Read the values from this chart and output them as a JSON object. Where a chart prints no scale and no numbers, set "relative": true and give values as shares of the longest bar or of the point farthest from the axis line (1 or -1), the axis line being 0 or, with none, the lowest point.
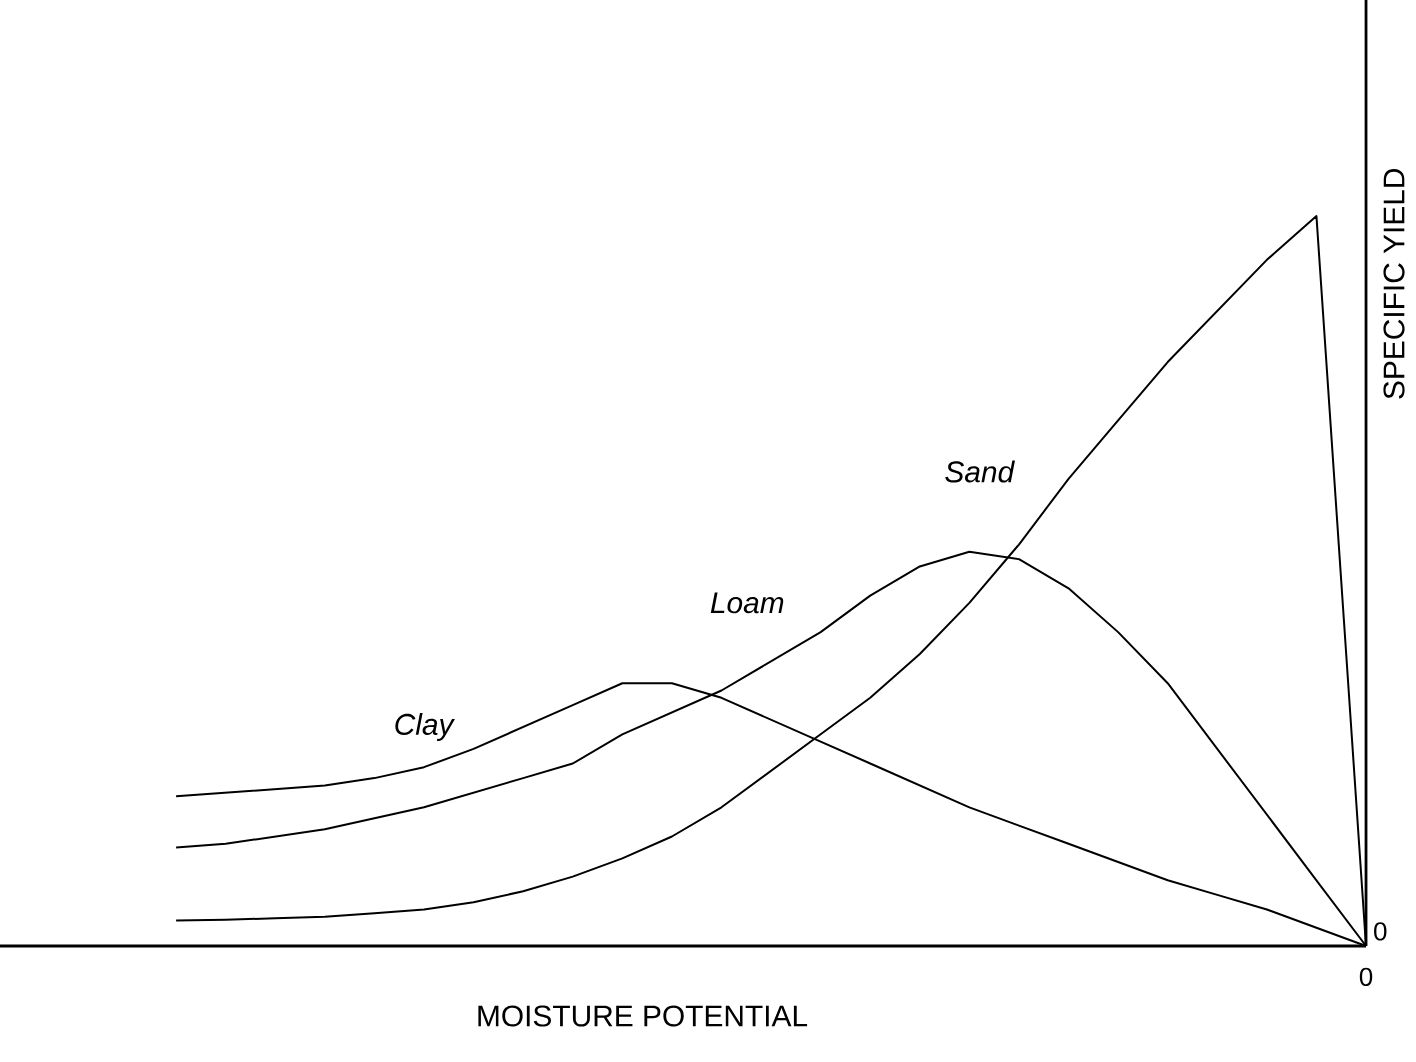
{
  "chart_data": {
    "type": "line",
    "relative": true,
    "xlabel": "MOISTURE POTENTIAL",
    "ylabel": "SPECIFIC YIELD",
    "annotations": [
      "0",
      "0"
    ],
    "categories": [
      null,
      null,
      null,
      null,
      null,
      null,
      null,
      null,
      null,
      null,
      null,
      null,
      null,
      null,
      null,
      null,
      null,
      null,
      null,
      null,
      null,
      null,
      null,
      null,
      null
    ],
    "series": [
      {
        "name": "Clay",
        "color": "#000000",
        "values": [
          0.205,
          0.21,
          0.215,
          0.22,
          0.23,
          0.245,
          0.27,
          0.3,
          0.33,
          0.36,
          0.36,
          0.34,
          0.31,
          0.28,
          0.25,
          0.22,
          0.19,
          0.165,
          0.14,
          0.115,
          0.09,
          0.07,
          0.05,
          0.025,
          0
        ]
      },
      {
        "name": "Loam",
        "color": "#000000",
        "values": [
          0.135,
          0.14,
          0.15,
          0.16,
          0.175,
          0.19,
          0.21,
          0.23,
          0.25,
          0.29,
          0.32,
          0.35,
          0.39,
          0.43,
          0.48,
          0.52,
          0.54,
          0.53,
          0.49,
          0.43,
          0.36,
          0.27,
          0.18,
          0.09,
          0
        ]
      },
      {
        "name": "Sand",
        "color": "#000000",
        "values": [
          0.035,
          0.036,
          0.038,
          0.04,
          0.045,
          0.05,
          0.06,
          0.075,
          0.095,
          0.12,
          0.15,
          0.19,
          0.24,
          0.29,
          0.34,
          0.4,
          0.47,
          0.55,
          0.64,
          0.72,
          0.8,
          0.87,
          0.94,
          1,
          0
        ]
      }
    ]
  }
}
